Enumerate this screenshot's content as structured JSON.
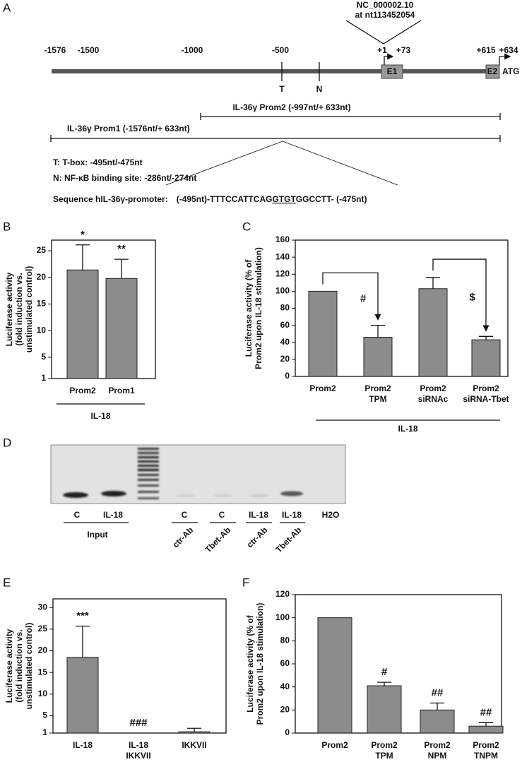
{
  "panel_labels": [
    "A",
    "B",
    "C",
    "D",
    "E",
    "F"
  ],
  "diagram": {
    "accession": [
      "NC_000002.10",
      "at nt113452054"
    ],
    "positions": [
      "-1576",
      "-1500",
      "-1000",
      "-500",
      "+1",
      "+73",
      "+615",
      "+634"
    ],
    "exons": [
      "E1",
      "E2"
    ],
    "start_codon": "ATG",
    "sites": [
      "T",
      "N"
    ],
    "constructs": [
      "IL-36γ Prom2 (-997nt/+ 633nt)",
      "IL-36γ Prom1 (-1576nt/+ 633nt)"
    ],
    "legend": [
      "T: T-box: -495nt/-475nt",
      "N: NF-κB binding site: -286nt/-274nt"
    ],
    "sequence": {
      "label": "Sequence hIL-36γ-promoter:",
      "start": "(-495nt)-TTTCCATTCAG",
      "motif": "GTGT",
      "end": "GGCCTT- (-475nt)"
    }
  },
  "gel": {
    "lanes": [
      "C",
      "IL-18",
      "C",
      "C",
      "IL-18",
      "IL-18",
      "H2O"
    ],
    "input_label": "Input",
    "antibodies": [
      "ctr-Ab",
      "Tbet-Ab",
      "ctr-Ab",
      "Tbet-Ab"
    ]
  },
  "chart_data": [
    {
      "type": "bar",
      "ylabel": [
        "Luciferase activity",
        "(fold induction vs.",
        "unstimulated control)"
      ],
      "categories": [
        [
          "Prom2"
        ],
        [
          "Prom1"
        ]
      ],
      "values": [
        21.4,
        19.8
      ],
      "errors": [
        4.7,
        3.6
      ],
      "annotations": [
        "*",
        "**"
      ],
      "group_label": "IL-18",
      "color": "#8c8c8c",
      "ylim": [
        1,
        27
      ],
      "yticks": [
        1,
        5,
        10,
        15,
        20,
        25
      ]
    },
    {
      "type": "bar",
      "ylabel": [
        "Luciferase activity (% of",
        "Prom2 upon  IL-18 stimulation)"
      ],
      "categories": [
        [
          "Prom2"
        ],
        [
          "Prom2",
          "TPM"
        ],
        [
          "Prom2",
          "siRNAc"
        ],
        [
          "Prom2",
          "siRNA-Tbet"
        ]
      ],
      "values": [
        100,
        46,
        103,
        43
      ],
      "errors": [
        0,
        14,
        13,
        4
      ],
      "annotations": [
        null,
        "#",
        null,
        "$"
      ],
      "group_label": "IL-18",
      "color": "#8c8c8c",
      "ylim": [
        0,
        160
      ],
      "yticks": [
        0,
        20,
        40,
        60,
        80,
        100,
        120,
        140,
        160
      ]
    },
    {
      "type": "bar",
      "ylabel": [
        "Luciferase activity",
        "(fold induction vs.",
        "unstimulated control)"
      ],
      "categories": [
        [
          "IL-18"
        ],
        [
          "IL-18",
          "IKKVII"
        ],
        [
          "IKKVII"
        ]
      ],
      "values": [
        18.5,
        1,
        1.3
      ],
      "errors": [
        7.2,
        0,
        0.8
      ],
      "annotations": [
        "***",
        "###",
        null
      ],
      "color": "#8c8c8c",
      "ylim": [
        1,
        32
      ],
      "yticks": [
        1,
        5,
        10,
        15,
        20,
        25,
        30
      ]
    },
    {
      "type": "bar",
      "ylabel": [
        "Luciferase activity (% of",
        "Prom2 upon IL-18 stimulation)"
      ],
      "categories": [
        [
          "Prom2"
        ],
        [
          "Prom2",
          "TPM"
        ],
        [
          "Prom2",
          "NPM"
        ],
        [
          "Prom2",
          "TNPM"
        ]
      ],
      "values": [
        100,
        41,
        20,
        6
      ],
      "errors": [
        0,
        3,
        6,
        3
      ],
      "annotations": [
        null,
        "#",
        "##",
        "##"
      ],
      "color": "#8c8c8c",
      "ylim": [
        0,
        120
      ],
      "yticks": [
        0,
        20,
        40,
        60,
        80,
        100,
        120
      ]
    }
  ]
}
